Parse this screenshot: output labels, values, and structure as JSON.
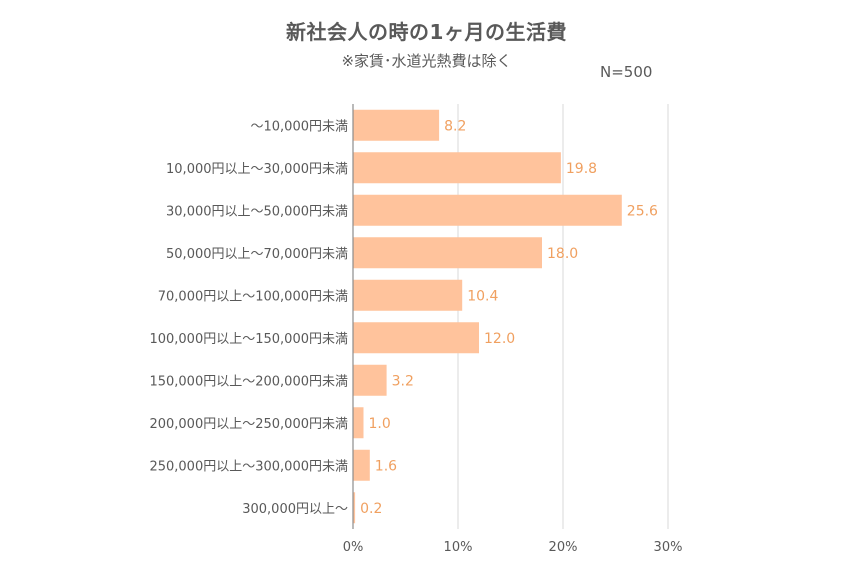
{
  "colors": {
    "bar": "#ffc39c",
    "value_label": "#f0a060",
    "text": "#595959",
    "grid": "#d9d9d9",
    "axis": "#8c8c8c"
  },
  "chart_data": {
    "type": "bar",
    "orientation": "horizontal",
    "title": "新社会人の時の1ヶ月の生活費",
    "subtitle": "※家賃･水道光熱費は除く",
    "note": "N=500",
    "categories": [
      "〜10,000円未満",
      "10,000円以上〜30,000円未満",
      "30,000円以上〜50,000円未満",
      "50,000円以上〜70,000円未満",
      "70,000円以上〜100,000円未満",
      "100,000円以上〜150,000円未満",
      "150,000円以上〜200,000円未満",
      "200,000円以上〜250,000円未満",
      "250,000円以上〜300,000円未満",
      "300,000円以上〜"
    ],
    "values": [
      8.2,
      19.8,
      25.6,
      18.0,
      10.4,
      12.0,
      3.2,
      1.0,
      1.6,
      0.2
    ],
    "value_labels": [
      "8.2",
      "19.8",
      "25.6",
      "18.0",
      "10.4",
      "12.0",
      "3.2",
      "1.0",
      "1.6",
      "0.2"
    ],
    "xlim": [
      0,
      30
    ],
    "x_ticks": [
      0,
      10,
      20,
      30
    ],
    "x_tick_labels": [
      "0%",
      "10%",
      "20%",
      "30%"
    ],
    "grid": true,
    "legend": "none"
  }
}
